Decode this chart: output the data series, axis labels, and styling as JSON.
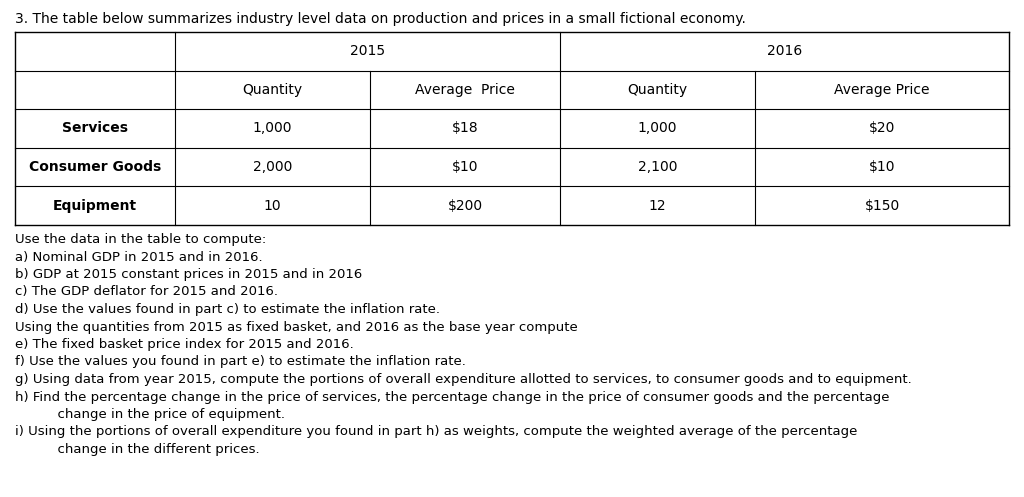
{
  "title": "3. The table below summarizes industry level data on production and prices in a small fictional economy.",
  "col_headers_year": [
    "2015",
    "2016"
  ],
  "col_headers_sub": [
    "Quantity",
    "Average  Price",
    "Quantity",
    "Average Price"
  ],
  "row_labels": [
    "Services",
    "Consumer Goods",
    "Equipment"
  ],
  "table_data": [
    [
      "1,000",
      "$18",
      "1,000",
      "$20"
    ],
    [
      "2,000",
      "$10",
      "2,100",
      "$10"
    ],
    [
      "10",
      "$200",
      "12",
      "$150"
    ]
  ],
  "questions": [
    "Use the data in the table to compute:",
    "a) Nominal GDP in 2015 and in 2016.",
    "b) GDP at 2015 constant prices in 2015 and in 2016",
    "c) The GDP deflator for 2015 and 2016.",
    "d) Use the values found in part c) to estimate the inflation rate.",
    "Using the quantities from 2015 as fixed basket, and 2016 as the base year compute",
    "e) The fixed basket price index for 2015 and 2016.",
    "f) Use the values you found in part e) to estimate the inflation rate.",
    "g) Using data from year 2015, compute the portions of overall expenditure allotted to services, to consumer goods and to equipment.",
    "h) Find the percentage change in the price of services, the percentage change in the price of consumer goods and the percentage",
    "          change in the price of equipment.",
    "i) Using the portions of overall expenditure you found in part h) as weights, compute the weighted average of the percentage",
    "          change in the different prices."
  ],
  "background_color": "#ffffff",
  "font_size_title": 10.0,
  "font_size_table": 10.0,
  "font_size_questions": 9.5
}
